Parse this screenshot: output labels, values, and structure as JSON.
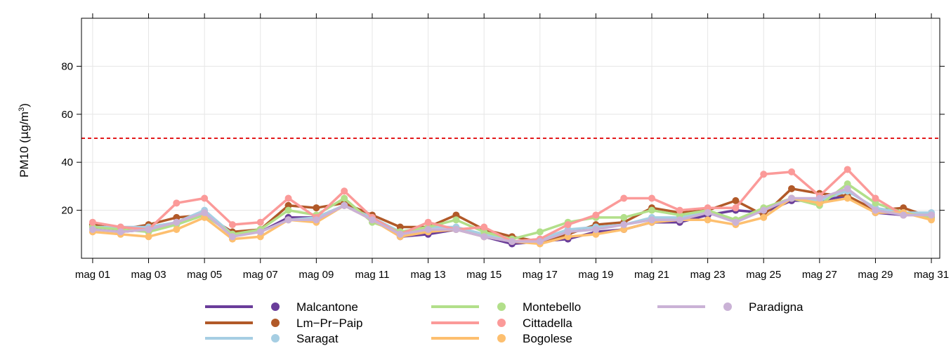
{
  "chart_data": {
    "type": "line",
    "ylabel": "PM10 (µg/m³)",
    "ylabel_parts": {
      "pre": "PM10 (",
      "mu": "μ",
      "mid": "g/m",
      "sup": "3",
      "post": ")"
    },
    "y_ticks": [
      20,
      40,
      60,
      80
    ],
    "ylim": [
      0,
      100
    ],
    "x_ticks": [
      "mag 01",
      "mag 03",
      "mag 05",
      "mag 07",
      "mag 09",
      "mag 11",
      "mag 13",
      "mag 15",
      "mag 17",
      "mag 19",
      "mag 21",
      "mag 23",
      "mag 25",
      "mag 27",
      "mag 29",
      "mag 31"
    ],
    "x_days": [
      1,
      2,
      3,
      4,
      5,
      6,
      7,
      8,
      9,
      10,
      11,
      12,
      13,
      14,
      15,
      16,
      17,
      18,
      19,
      20,
      21,
      22,
      23,
      24,
      25,
      26,
      27,
      28,
      29,
      30,
      31
    ],
    "xlim": [
      0.6,
      31.3
    ],
    "grid": true,
    "threshold": {
      "value": 50,
      "color": "#e31a1c",
      "style": "dashed"
    },
    "legend_position": "bottom",
    "series": [
      {
        "name": "Malcantone",
        "color": "#6a3d9a",
        "values": [
          13,
          11,
          12,
          15,
          19,
          10,
          11,
          17,
          17,
          22,
          17,
          9,
          10,
          12,
          9,
          6,
          7,
          8,
          11,
          12,
          15,
          15,
          18,
          20,
          19,
          24,
          24,
          26,
          19,
          18,
          18
        ]
      },
      {
        "name": "Lm−Pr−Paip",
        "color": "#b15928",
        "values": [
          14,
          12,
          14,
          17,
          18,
          11,
          12,
          22,
          21,
          23,
          18,
          13,
          13,
          18,
          12,
          9,
          7,
          10,
          14,
          15,
          21,
          19,
          20,
          24,
          18,
          29,
          27,
          26,
          20,
          21,
          17
        ]
      },
      {
        "name": "Saragat",
        "color": "#a6cee3",
        "values": [
          13,
          13,
          13,
          15,
          20,
          10,
          11,
          16,
          17,
          22,
          17,
          11,
          13,
          13,
          10,
          7,
          8,
          12,
          13,
          14,
          17,
          17,
          19,
          16,
          20,
          25,
          24,
          28,
          21,
          19,
          19
        ]
      },
      {
        "name": "Montebello",
        "color": "#b2df8a",
        "values": [
          13,
          12,
          11,
          14,
          18,
          10,
          12,
          20,
          18,
          25,
          15,
          11,
          13,
          16,
          11,
          8,
          11,
          15,
          17,
          17,
          20,
          18,
          20,
          16,
          21,
          25,
          22,
          31,
          23,
          19,
          17
        ]
      },
      {
        "name": "Cittadella",
        "color": "#fb9a99",
        "values": [
          15,
          13,
          12,
          23,
          25,
          14,
          15,
          25,
          17,
          28,
          17,
          10,
          15,
          12,
          13,
          7,
          8,
          14,
          18,
          25,
          25,
          20,
          21,
          21,
          35,
          36,
          26,
          37,
          25,
          18,
          18
        ]
      },
      {
        "name": "Bogolese",
        "color": "#fdbf6f",
        "values": [
          11,
          10,
          9,
          12,
          17,
          8,
          9,
          16,
          15,
          22,
          16,
          9,
          11,
          12,
          9,
          7,
          6,
          9,
          10,
          12,
          15,
          16,
          16,
          14,
          17,
          25,
          23,
          25,
          19,
          19,
          16
        ]
      },
      {
        "name": "Paradigna",
        "color": "#cab2d6",
        "values": [
          12,
          11,
          12,
          15,
          19,
          9,
          11,
          16,
          16,
          22,
          16,
          10,
          12,
          12,
          9,
          7,
          7,
          11,
          12,
          14,
          16,
          16,
          19,
          15,
          20,
          25,
          25,
          29,
          20,
          18,
          18
        ]
      }
    ]
  }
}
